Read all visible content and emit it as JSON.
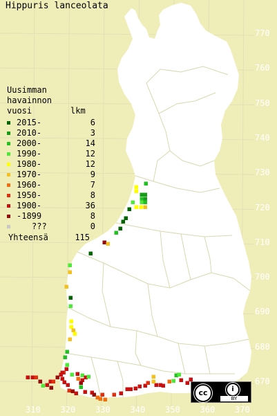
{
  "title": "Hippuris lanceolata",
  "legend": {
    "heading": [
      "Uusimman",
      "havainnon"
    ],
    "col_year": "vuosi",
    "col_count": "lkm",
    "rows": [
      {
        "label": "2015-",
        "count": "6",
        "color": "#006400"
      },
      {
        "label": "2010-",
        "count": "3",
        "color": "#169c16"
      },
      {
        "label": "2000-",
        "count": "14",
        "color": "#22c022"
      },
      {
        "label": "1990-",
        "count": "12",
        "color": "#4fe83a"
      },
      {
        "label": "1980-",
        "count": "12",
        "color": "#ffff00"
      },
      {
        "label": "1970-",
        "count": "9",
        "color": "#f4c020"
      },
      {
        "label": "1960-",
        "count": "7",
        "color": "#f07010"
      },
      {
        "label": "1950-",
        "count": "8",
        "color": "#e03010"
      },
      {
        "label": "1900-",
        "count": "36",
        "color": "#c81010"
      },
      {
        "label": "-1899",
        "count": "8",
        "color": "#960a0a"
      },
      {
        "label": "???",
        "count": "0",
        "color": "#c8c8c8"
      }
    ],
    "total_label": "Yhteensä",
    "total_count": "115"
  },
  "x_ticks": [
    "310",
    "320",
    "330",
    "340",
    "350",
    "360",
    "370"
  ],
  "y_ticks": [
    "770",
    "760",
    "750",
    "740",
    "730",
    "720",
    "710",
    "700",
    "690",
    "680",
    "670"
  ],
  "license": {
    "cc": "cc",
    "by_icon": "i",
    "by": "BY"
  }
}
